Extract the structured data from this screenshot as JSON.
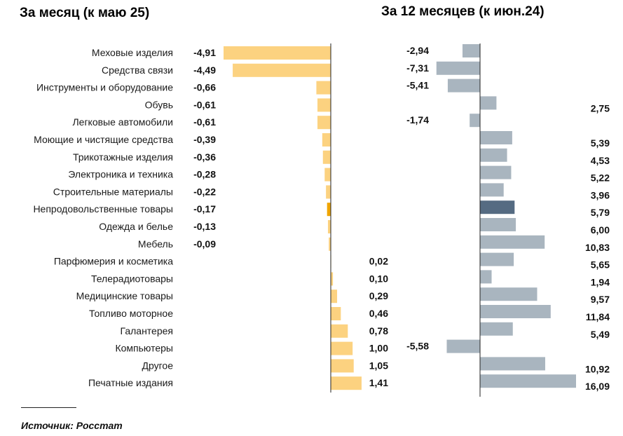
{
  "chart_data": {
    "type": "bar",
    "orientation": "horizontal",
    "categories": [
      "Меховые изделия",
      "Средства связи",
      "Инструменты и оборудование",
      "Обувь",
      "Легковые автомобили",
      "Моющие и чистящие средства",
      "Трикотажные изделия",
      "Электроника и техника",
      "Строительные материалы",
      "Непродовольственные товары",
      "Одежда и белье",
      "Мебель",
      "Парфюмерия и косметика",
      "Телерадиотовары",
      "Медицинские товары",
      "Топливо моторное",
      "Галантерея",
      "Компьютеры",
      "Другое",
      "Печатные издания"
    ],
    "highlight_index": 9,
    "panels": [
      {
        "title": "За месяц (к маю 25)",
        "values": [
          -4.91,
          -4.49,
          -0.66,
          -0.61,
          -0.61,
          -0.39,
          -0.36,
          -0.28,
          -0.22,
          -0.17,
          -0.13,
          -0.09,
          0.02,
          0.1,
          0.29,
          0.46,
          0.78,
          1.0,
          1.05,
          1.41
        ],
        "labels": [
          "-4,91",
          "-4,49",
          "-0,66",
          "-0,61",
          "-0,61",
          "-0,39",
          "-0,36",
          "-0,28",
          "-0,22",
          "-0,17",
          "-0,13",
          "-0,09",
          "0,02",
          "0,10",
          "0,29",
          "0,46",
          "0,78",
          "1,00",
          "1,05",
          "1,41"
        ],
        "color": "#fcd280",
        "highlight_color": "#f0a500"
      },
      {
        "title": "За 12 месяцев (к июн.24)",
        "values": [
          -2.94,
          -7.31,
          -5.41,
          2.75,
          -1.74,
          5.39,
          4.53,
          5.22,
          3.96,
          5.79,
          6.0,
          10.83,
          5.65,
          1.94,
          9.57,
          11.84,
          5.49,
          -5.58,
          10.92,
          16.09
        ],
        "labels": [
          "-2,94",
          "-7,31",
          "-5,41",
          "2,75",
          "-1,74",
          "5,39",
          "4,53",
          "5,22",
          "3,96",
          "5,79",
          "6,00",
          "10,83",
          "5,65",
          "1,94",
          "9,57",
          "11,84",
          "5,49",
          "-5,58",
          "10,92",
          "16,09"
        ],
        "color": "#a9b5bf",
        "highlight_color": "#556b82"
      }
    ]
  },
  "source": "Источник: Росстат"
}
